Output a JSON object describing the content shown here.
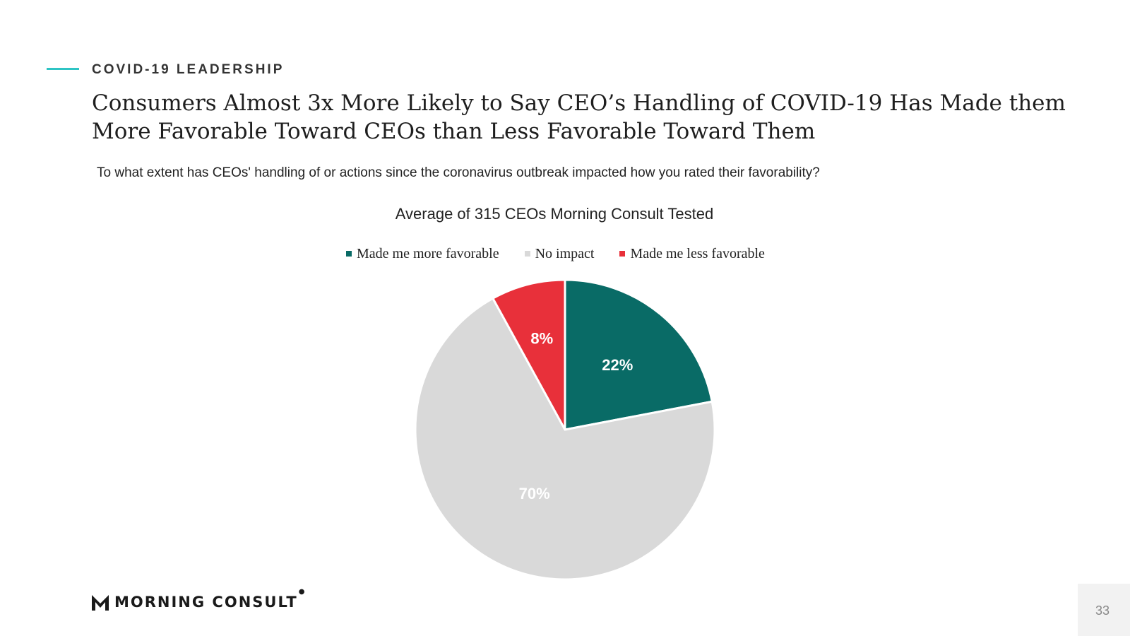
{
  "header": {
    "eyebrow": "COVID-19 LEADERSHIP",
    "title": "Consumers Almost 3x More Likely to Say CEO’s Handling of COVID-19 Has Made them More Favorable Toward CEOs than Less Favorable Toward Them",
    "question": "To what extent has CEOs' handling of or actions since the coronavirus outbreak impacted how you rated their favorability?"
  },
  "chart_data": {
    "type": "pie",
    "title": "Average of 315 CEOs Morning Consult Tested",
    "legend_position": "top",
    "slices": [
      {
        "label": "Made me more favorable",
        "value": 22,
        "display": "22%",
        "color": "#096b66"
      },
      {
        "label": "No impact",
        "value": 70,
        "display": "70%",
        "color": "#d9d9d9"
      },
      {
        "label": "Made me less favorable",
        "value": 8,
        "display": "8%",
        "color": "#e8303a"
      }
    ]
  },
  "footer": {
    "logo_text": "MORNING CONSULT",
    "page_number": "33"
  }
}
